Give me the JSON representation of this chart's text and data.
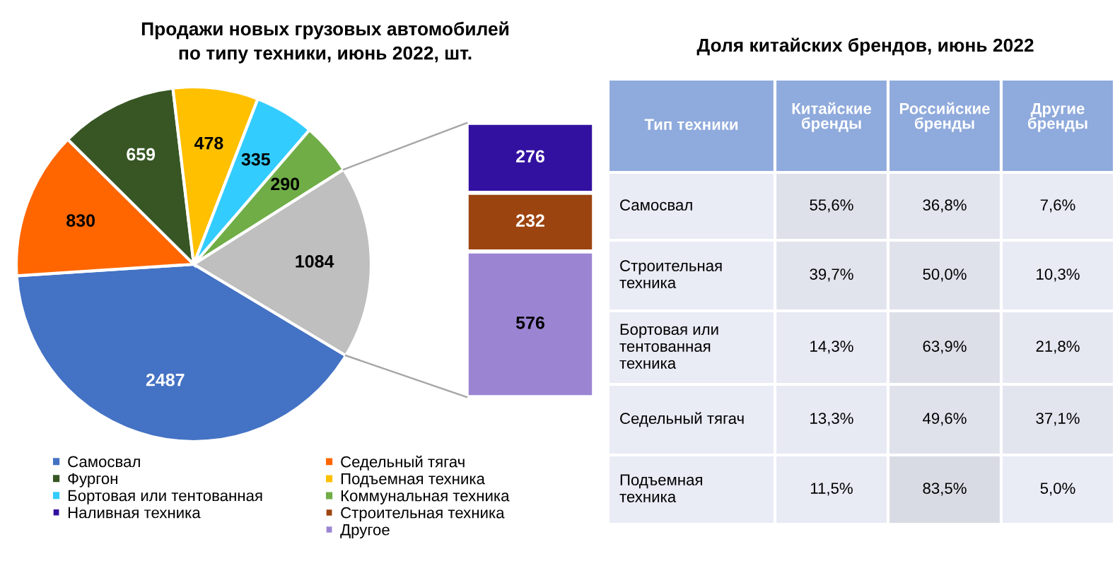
{
  "chart_data": [
    {
      "type": "pie",
      "title": "Продажи новых грузовых автомобилей\nпо типу техники, июнь 2022, шт.",
      "categories": [
        "Самосвал",
        "Седельный тягач",
        "Фургон",
        "Подъемная техника",
        "Бортовая или тентованная",
        "Коммунальная техника",
        null
      ],
      "values": [
        2487,
        830,
        659,
        478,
        335,
        290,
        1084
      ],
      "colors": [
        "#4472c4",
        "#ff6600",
        "#375623",
        "#ffc000",
        "#33ccff",
        "#70ad47",
        "#bfbfbf"
      ],
      "data_labels": true,
      "legend": "bottom"
    },
    {
      "type": "bar",
      "stacked": true,
      "categories": [
        null
      ],
      "data_labels": true,
      "legend": "bottom",
      "series": [
        {
          "name": "Другое",
          "color": "#9b85d3",
          "values": [
            576
          ]
        },
        {
          "name": "Строительная техника",
          "color": "#9c440f",
          "values": [
            232
          ]
        },
        {
          "name": "Наливная техника",
          "color": "#3311a0",
          "values": [
            276
          ]
        }
      ]
    },
    {
      "type": "heatmap",
      "title": "Доля китайских брендов, июнь 2022",
      "ylabel": "Тип техники",
      "categories": [
        "Китайские\nбренды",
        "Российские\nбренды",
        "Другие\nбренды"
      ],
      "y_categories": [
        "Самосвал",
        "Строительная\nтехника",
        "Бортовая или\nтентованная\nтехника",
        "Седельный тягач",
        "Подъемная\nтехника"
      ],
      "color": "#e9ebf5",
      "cells": [
        [
          55.6,
          36.8,
          7.6
        ],
        [
          39.7,
          50.0,
          10.3
        ],
        [
          14.3,
          63.9,
          21.8
        ],
        [
          13.3,
          49.6,
          37.1
        ],
        [
          11.5,
          83.5,
          5.0
        ]
      ],
      "cell_labels": [
        [
          "55,6%",
          "36,8%",
          "7,6%"
        ],
        [
          "39,7%",
          "50,0%",
          "10,3%"
        ],
        [
          "14,3%",
          "63,9%",
          "21,8%"
        ],
        [
          "13,3%",
          "49,6%",
          "37,1%"
        ],
        [
          "11,5%",
          "83,5%",
          "5,0%"
        ]
      ]
    }
  ]
}
